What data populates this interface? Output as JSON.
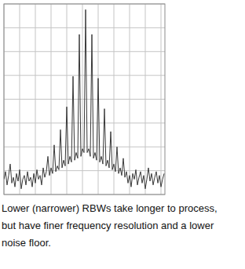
{
  "chart_data": {
    "type": "line",
    "x": [
      0,
      2,
      4,
      6,
      8,
      10,
      12,
      14,
      16,
      18,
      20,
      22,
      24,
      26,
      28,
      30,
      32,
      34,
      36,
      38,
      40,
      42,
      44,
      46,
      48,
      50,
      52,
      54,
      56,
      58,
      60,
      62,
      64,
      66,
      68,
      70,
      72,
      74,
      76,
      78,
      80,
      82,
      84,
      86,
      88,
      90,
      92,
      94,
      96,
      98,
      100,
      102,
      104,
      106,
      108,
      110,
      112,
      114,
      116,
      118,
      120,
      122,
      124,
      126,
      128,
      130,
      132,
      134,
      136,
      138,
      140,
      142,
      144,
      146,
      148,
      150,
      152,
      154,
      156,
      158,
      160,
      162,
      164,
      166,
      168,
      170,
      172,
      174,
      176,
      178,
      180,
      182,
      184,
      186,
      188,
      190,
      192,
      194,
      196,
      198,
      200,
      202,
      204
    ],
    "values": [
      8,
      12,
      5,
      10,
      16,
      6,
      9,
      4,
      11,
      7,
      13,
      3,
      8,
      10,
      5,
      12,
      7,
      9,
      4,
      11,
      6,
      13,
      8,
      10,
      5,
      14,
      9,
      12,
      20,
      10,
      14,
      11,
      26,
      12,
      15,
      13,
      34,
      14,
      18,
      15,
      46,
      16,
      20,
      17,
      62,
      18,
      22,
      19,
      84,
      20,
      24,
      22,
      97,
      22,
      24,
      20,
      84,
      19,
      22,
      18,
      61,
      17,
      20,
      16,
      45,
      15,
      18,
      14,
      33,
      13,
      16,
      12,
      25,
      11,
      14,
      10,
      19,
      9,
      12,
      6,
      10,
      4,
      11,
      8,
      13,
      5,
      9,
      12,
      6,
      10,
      3,
      8,
      14,
      7,
      11,
      5,
      9,
      12,
      6,
      10,
      4,
      8,
      11
    ],
    "color": "#3a3a3a",
    "xlim": [
      0,
      205
    ],
    "ylim": [
      0,
      100
    ],
    "xticks": [
      0,
      20,
      40,
      60,
      80,
      100,
      120,
      140,
      160,
      180,
      200
    ],
    "yticks": [
      0,
      12.5,
      25,
      37.5,
      50,
      62.5,
      75,
      87.5,
      100
    ],
    "grid": true,
    "tick_labels": false,
    "annotations": [
      "Lower (narrower) RBWs take longer to process,",
      "but have finer frequency resolution and a lower",
      "noise floor."
    ]
  }
}
